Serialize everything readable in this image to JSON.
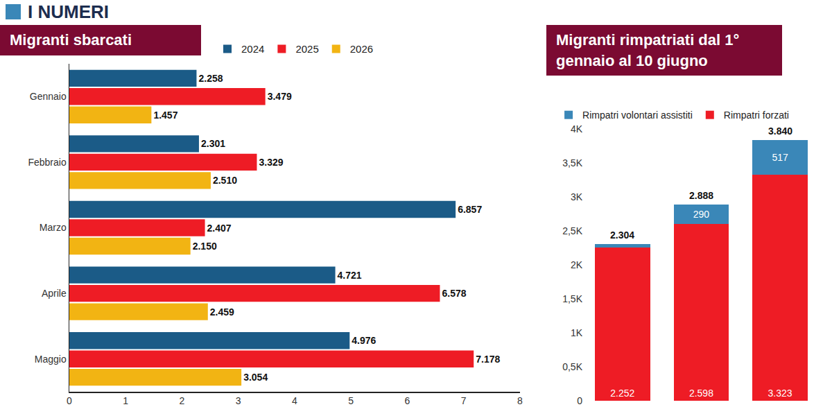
{
  "header": {
    "title": "I NUMERI"
  },
  "chart_data": [
    {
      "type": "bar",
      "title": "Migranti sbarcati",
      "orientation": "horizontal",
      "categories": [
        "Gennaio",
        "Febbraio",
        "Marzo",
        "Aprile",
        "Maggio"
      ],
      "series": [
        {
          "name": "2024",
          "color": "#1b5b87",
          "values": [
            2.258,
            2.301,
            6.857,
            4.721,
            4.976
          ],
          "value_labels": [
            "2.258",
            "2.301",
            "6.857",
            "4.721",
            "4.976"
          ]
        },
        {
          "name": "2025",
          "color": "#ee1c25",
          "values": [
            3.479,
            3.329,
            2.407,
            6.578,
            7.178
          ],
          "value_labels": [
            "3.479",
            "3.329",
            "2.407",
            "6.578",
            "7.178"
          ]
        },
        {
          "name": "2026",
          "color": "#f2b413",
          "values": [
            1.457,
            2.51,
            2.15,
            2.459,
            3.054
          ],
          "value_labels": [
            "1.457",
            "2.510",
            "2.150",
            "2.459",
            "3.054"
          ]
        }
      ],
      "xlim": [
        0,
        8
      ],
      "xticks": [
        0,
        1,
        2,
        3,
        4,
        5,
        6,
        7,
        8
      ],
      "grid": false,
      "legend": "top",
      "data_labels": true
    },
    {
      "type": "bar",
      "title": "Migranti rimpatriati dal 1° gennaio al 10 giugno",
      "stacked": true,
      "categories": [
        null,
        null,
        null
      ],
      "series": [
        {
          "name": "Rimpatri forzati",
          "color": "#ee1c25",
          "values": [
            2252,
            2598,
            3323
          ],
          "value_labels": [
            "2.252",
            "2.598",
            "3.323"
          ]
        },
        {
          "name": "Rimpatri volontari assistiti",
          "color": "#3a87b8",
          "values": [
            52,
            290,
            517
          ],
          "value_labels": [
            null,
            "290",
            "517"
          ]
        }
      ],
      "totals": [
        2304,
        2888,
        3840
      ],
      "total_labels": [
        "2.304",
        "2.888",
        "3.840"
      ],
      "ylim": [
        0,
        4000
      ],
      "yticks": [
        0,
        {
          "value": 500,
          "label": "0,5K"
        },
        {
          "value": 1000,
          "label": "1K"
        },
        {
          "value": 1500,
          "label": "1,5K"
        },
        {
          "value": 2000,
          "label": "2K"
        },
        {
          "value": 2500,
          "label": "2,5K"
        },
        {
          "value": 3000,
          "label": "3K"
        },
        {
          "value": 3500,
          "label": "3,5K"
        },
        {
          "value": 4000,
          "label": "4K"
        }
      ],
      "grid": false,
      "legend": "top",
      "data_labels": true,
      "tick_labels": "y"
    }
  ]
}
